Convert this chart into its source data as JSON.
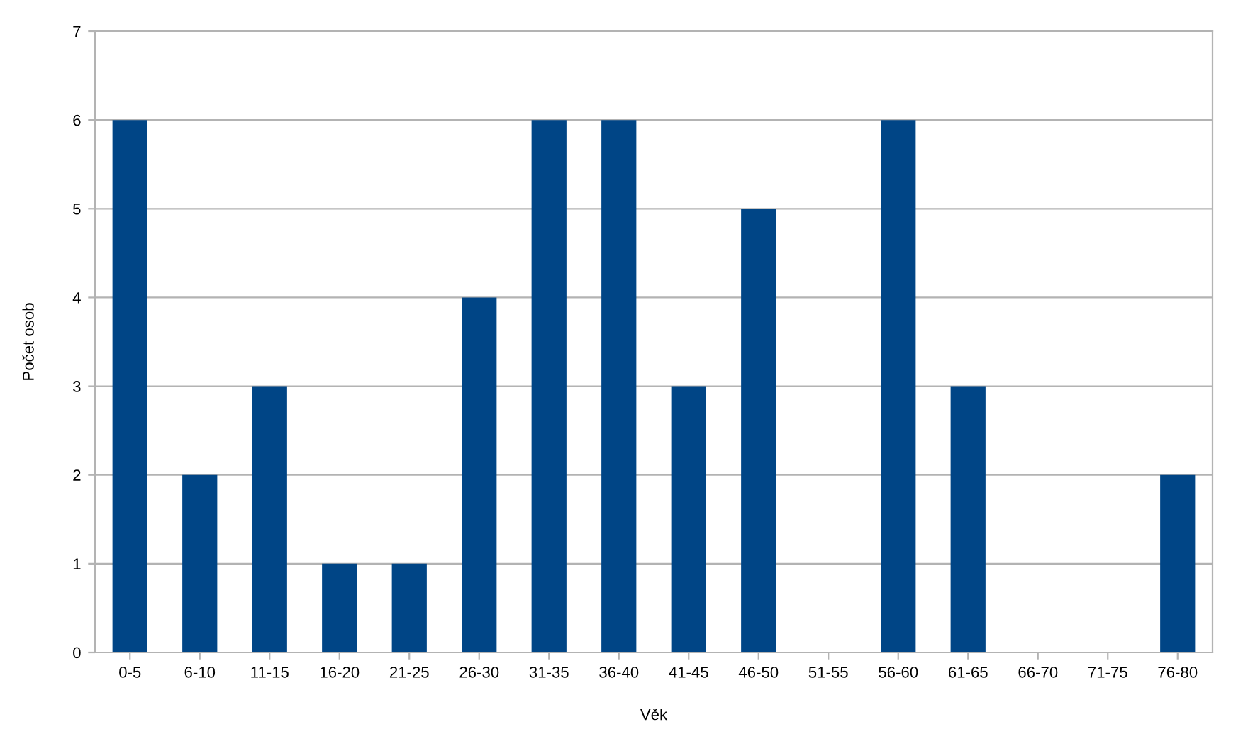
{
  "chart_data": {
    "type": "bar",
    "xlabel": "Věk",
    "ylabel": "Počet osob",
    "categories": [
      "0-5",
      "6-10",
      "11-15",
      "16-20",
      "21-25",
      "26-30",
      "31-35",
      "36-40",
      "41-45",
      "46-50",
      "51-55",
      "56-60",
      "61-65",
      "66-70",
      "71-75",
      "76-80"
    ],
    "values": [
      6,
      2,
      3,
      1,
      1,
      4,
      6,
      6,
      3,
      5,
      0,
      6,
      3,
      0,
      0,
      2
    ],
    "color": "#004586",
    "ylim": [
      0,
      7
    ],
    "yticks": [
      0,
      1,
      2,
      3,
      4,
      5,
      6,
      7
    ],
    "grid": "y",
    "legend": false
  }
}
